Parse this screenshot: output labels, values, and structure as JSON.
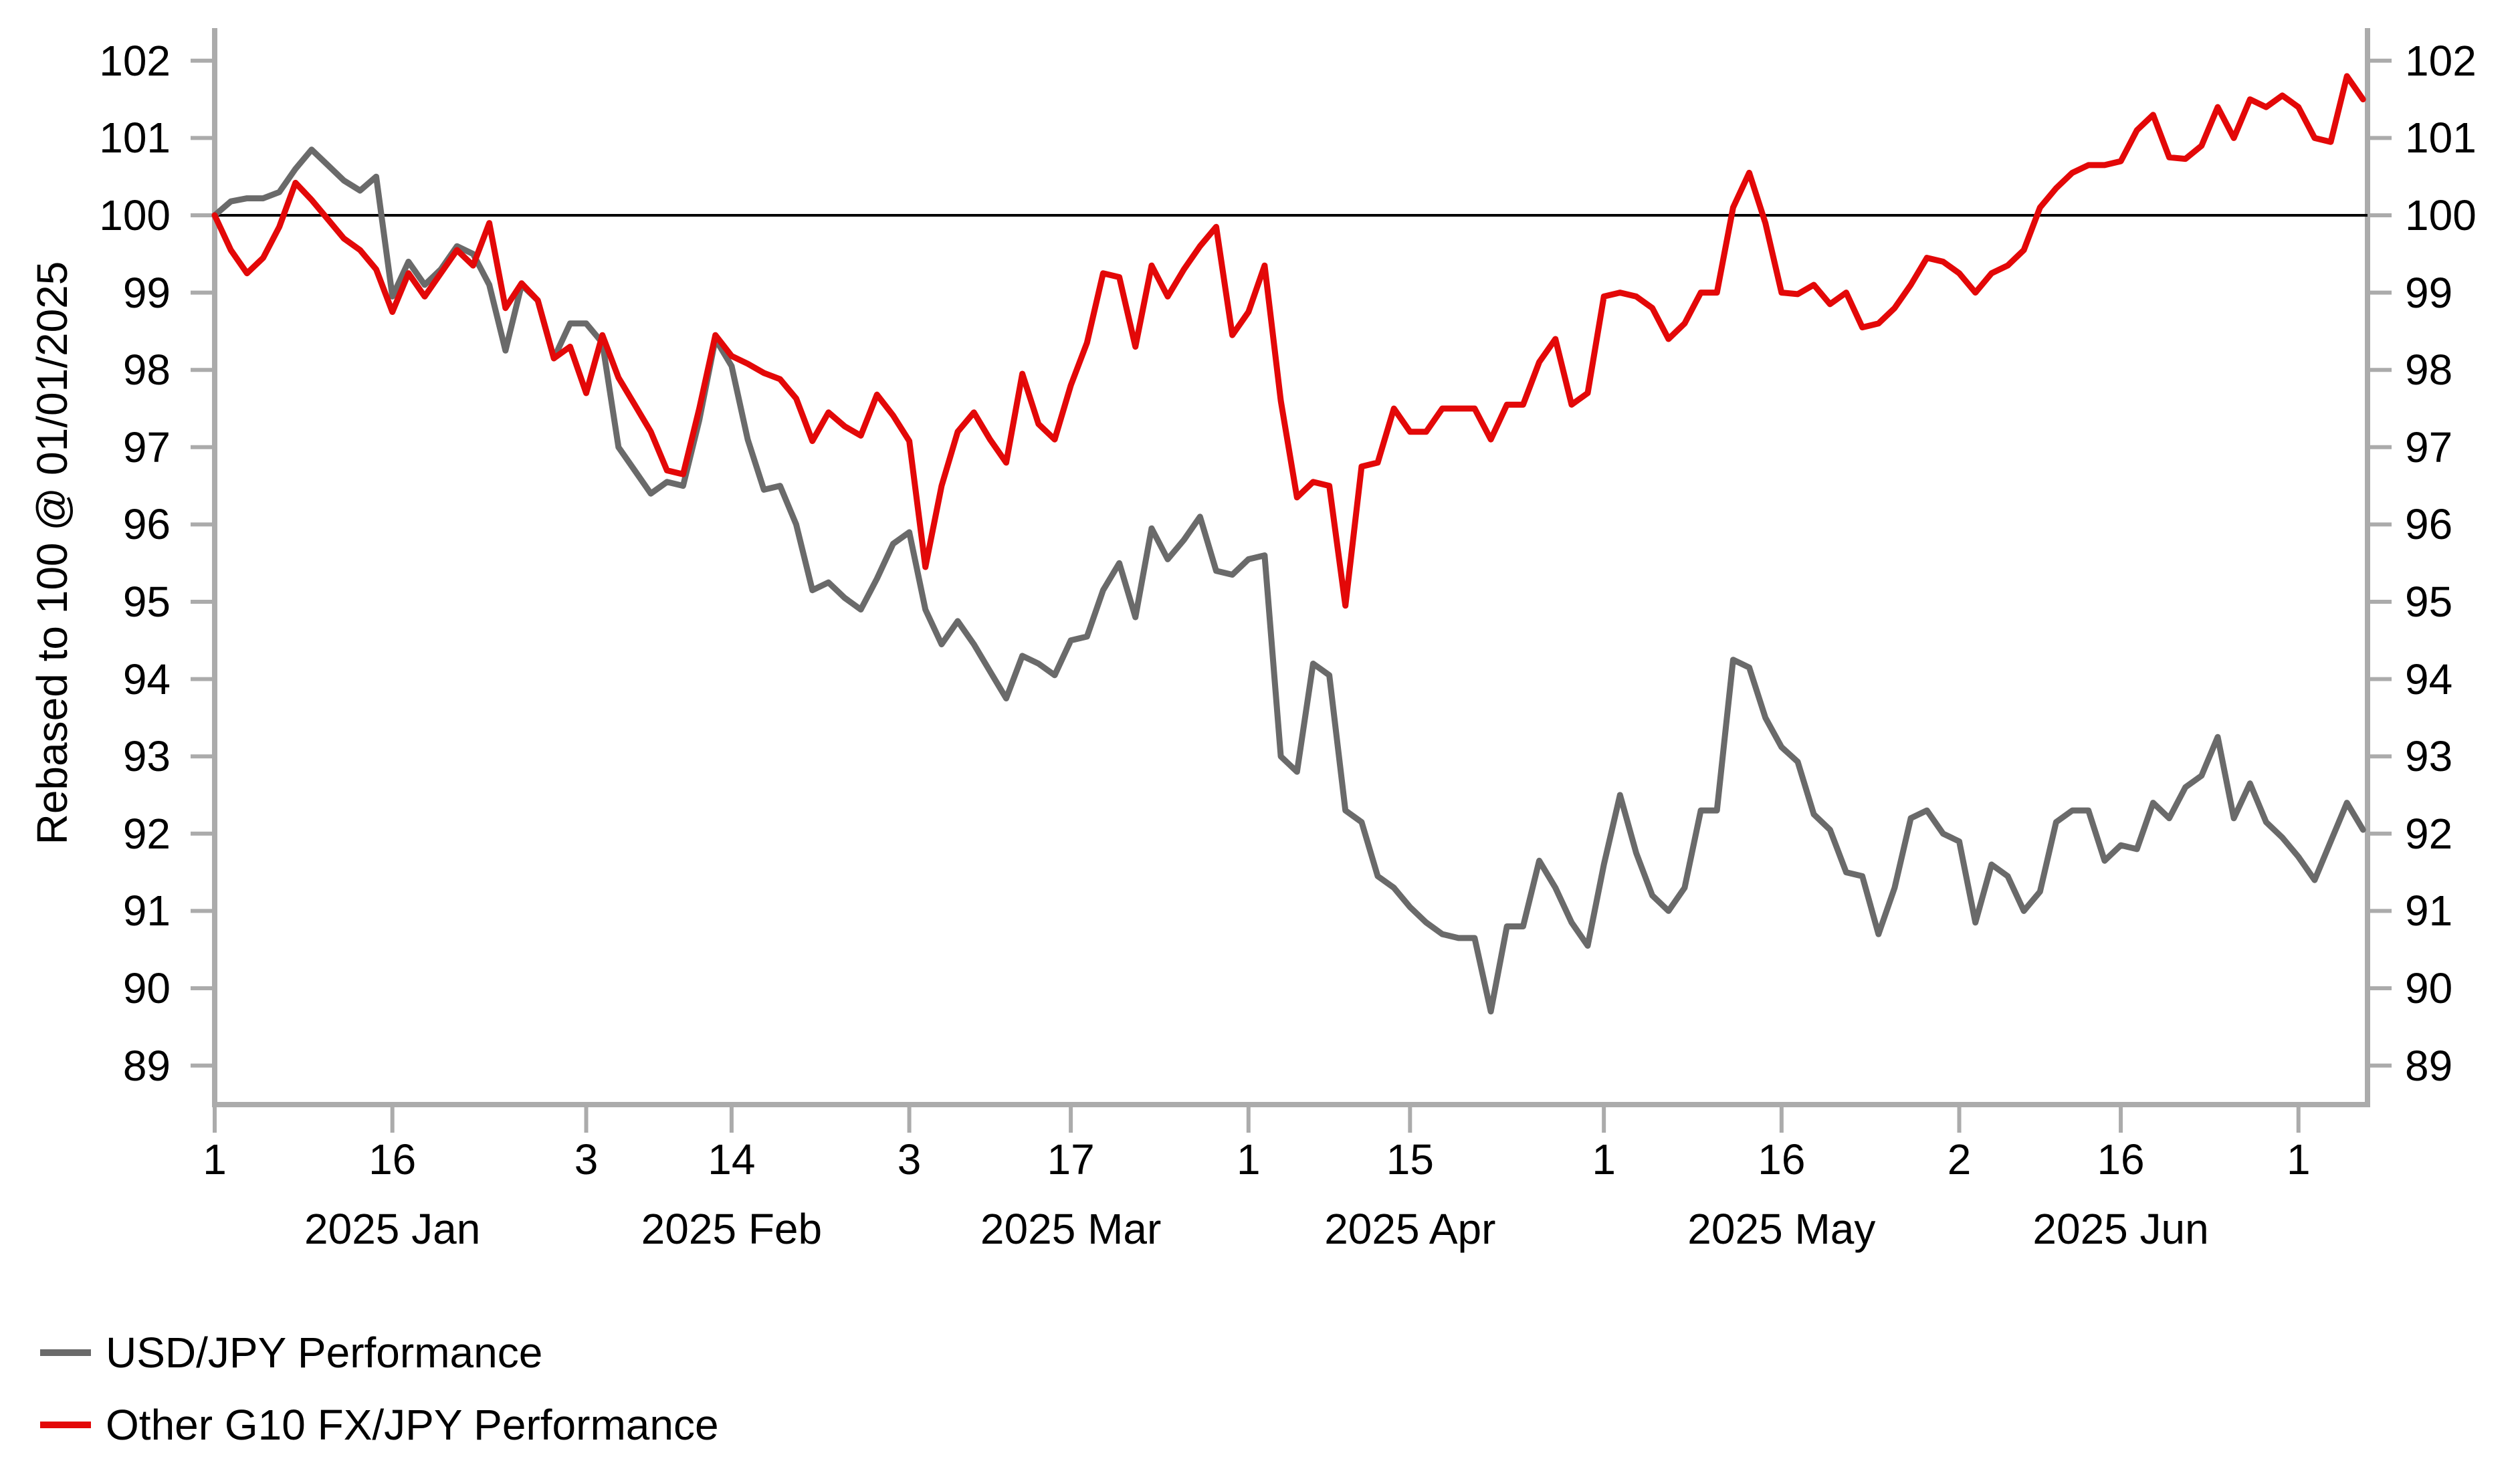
{
  "chart_data": {
    "type": "line",
    "title": "",
    "ylabel": "Rebased to 100 @ 01/01/2025",
    "ylim": [
      89,
      102
    ],
    "yticks": [
      102,
      101,
      100,
      99,
      98,
      97,
      96,
      95,
      94,
      93,
      92,
      91,
      90,
      89
    ],
    "baseline": 100,
    "grid": false,
    "legend_position": "bottom-left",
    "x_dates": [
      "2025-01-01",
      "2025-01-02",
      "2025-01-03",
      "2025-01-06",
      "2025-01-07",
      "2025-01-08",
      "2025-01-09",
      "2025-01-10",
      "2025-01-13",
      "2025-01-14",
      "2025-01-15",
      "2025-01-16",
      "2025-01-17",
      "2025-01-20",
      "2025-01-21",
      "2025-01-22",
      "2025-01-23",
      "2025-01-24",
      "2025-01-27",
      "2025-01-28",
      "2025-01-29",
      "2025-01-30",
      "2025-01-31",
      "2025-02-03",
      "2025-02-04",
      "2025-02-05",
      "2025-02-06",
      "2025-02-07",
      "2025-02-10",
      "2025-02-11",
      "2025-02-12",
      "2025-02-13",
      "2025-02-14",
      "2025-02-17",
      "2025-02-18",
      "2025-02-19",
      "2025-02-20",
      "2025-02-21",
      "2025-02-24",
      "2025-02-25",
      "2025-02-26",
      "2025-02-27",
      "2025-02-28",
      "2025-03-03",
      "2025-03-04",
      "2025-03-05",
      "2025-03-06",
      "2025-03-07",
      "2025-03-10",
      "2025-03-11",
      "2025-03-12",
      "2025-03-13",
      "2025-03-14",
      "2025-03-17",
      "2025-03-18",
      "2025-03-19",
      "2025-03-20",
      "2025-03-21",
      "2025-03-24",
      "2025-03-25",
      "2025-03-26",
      "2025-03-27",
      "2025-03-28",
      "2025-03-31",
      "2025-04-01",
      "2025-04-02",
      "2025-04-03",
      "2025-04-04",
      "2025-04-07",
      "2025-04-08",
      "2025-04-09",
      "2025-04-10",
      "2025-04-11",
      "2025-04-14",
      "2025-04-15",
      "2025-04-16",
      "2025-04-17",
      "2025-04-18",
      "2025-04-21",
      "2025-04-22",
      "2025-04-23",
      "2025-04-24",
      "2025-04-25",
      "2025-04-28",
      "2025-04-29",
      "2025-04-30",
      "2025-05-01",
      "2025-05-02",
      "2025-05-05",
      "2025-05-06",
      "2025-05-07",
      "2025-05-08",
      "2025-05-09",
      "2025-05-12",
      "2025-05-13",
      "2025-05-14",
      "2025-05-15",
      "2025-05-16",
      "2025-05-19",
      "2025-05-20",
      "2025-05-21",
      "2025-05-22",
      "2025-05-23",
      "2025-05-26",
      "2025-05-27",
      "2025-05-28",
      "2025-05-29",
      "2025-05-30",
      "2025-06-02",
      "2025-06-03",
      "2025-06-04",
      "2025-06-05",
      "2025-06-06",
      "2025-06-09",
      "2025-06-10",
      "2025-06-11",
      "2025-06-12",
      "2025-06-13",
      "2025-06-16",
      "2025-06-17",
      "2025-06-18",
      "2025-06-19",
      "2025-06-20",
      "2025-06-23",
      "2025-06-24",
      "2025-06-25",
      "2025-06-26",
      "2025-06-27",
      "2025-06-30",
      "2025-07-01",
      "2025-07-02",
      "2025-07-03",
      "2025-07-04",
      "2025-07-07"
    ],
    "xticks": [
      {
        "i": 0,
        "label": "1"
      },
      {
        "i": 11,
        "label": "16"
      },
      {
        "i": 23,
        "label": "3"
      },
      {
        "i": 32,
        "label": "14"
      },
      {
        "i": 43,
        "label": "3"
      },
      {
        "i": 53,
        "label": "17"
      },
      {
        "i": 64,
        "label": "1"
      },
      {
        "i": 74,
        "label": "15"
      },
      {
        "i": 86,
        "label": "1"
      },
      {
        "i": 97,
        "label": "16"
      },
      {
        "i": 108,
        "label": "2"
      },
      {
        "i": 118,
        "label": "16"
      },
      {
        "i": 129,
        "label": "1"
      }
    ],
    "month_labels": [
      {
        "i": 11,
        "label": "2025 Jan"
      },
      {
        "i": 32,
        "label": "2025 Feb"
      },
      {
        "i": 53,
        "label": "2025 Mar"
      },
      {
        "i": 74,
        "label": "2025 Apr"
      },
      {
        "i": 97,
        "label": "2025 May"
      },
      {
        "i": 118,
        "label": "2025 Jun"
      }
    ],
    "series": [
      {
        "name": "USD/JPY Performance",
        "color": "#6a6a6a",
        "values": [
          100.0,
          100.18,
          100.22,
          100.22,
          100.3,
          100.6,
          100.85,
          100.65,
          100.45,
          100.32,
          100.5,
          98.95,
          99.4,
          99.1,
          99.3,
          99.6,
          99.5,
          99.1,
          98.25,
          99.1,
          98.9,
          98.15,
          98.6,
          98.6,
          98.35,
          97.0,
          96.7,
          96.4,
          96.55,
          96.5,
          97.35,
          98.4,
          98.05,
          97.1,
          96.45,
          96.5,
          96.0,
          95.15,
          95.25,
          95.05,
          94.9,
          95.3,
          95.75,
          95.9,
          94.9,
          94.45,
          94.75,
          94.45,
          94.1,
          93.75,
          94.3,
          94.2,
          94.05,
          94.5,
          94.55,
          95.15,
          95.5,
          94.8,
          95.95,
          95.55,
          95.8,
          96.1,
          95.4,
          95.35,
          95.55,
          95.6,
          93.0,
          92.8,
          94.2,
          94.05,
          92.3,
          92.15,
          91.45,
          91.3,
          91.05,
          90.85,
          90.7,
          90.65,
          90.65,
          89.7,
          90.8,
          90.8,
          91.65,
          91.3,
          90.85,
          90.55,
          91.6,
          92.5,
          91.75,
          91.2,
          91.0,
          91.3,
          92.3,
          92.3,
          94.25,
          94.15,
          93.5,
          93.12,
          92.93,
          92.25,
          92.05,
          91.5,
          91.45,
          90.7,
          91.3,
          92.2,
          92.3,
          92.0,
          91.9,
          90.85,
          91.6,
          91.45,
          91.0,
          91.25,
          92.15,
          92.3,
          92.3,
          91.65,
          91.85,
          91.8,
          92.4,
          92.2,
          92.6,
          92.75,
          93.25,
          92.2,
          92.65,
          92.15,
          91.95,
          91.7,
          91.4,
          91.9,
          92.4,
          92.05
        ]
      },
      {
        "name": "Other G10 FX/JPY Performance",
        "color": "#e30808",
        "values": [
          100.0,
          99.55,
          99.25,
          99.45,
          99.85,
          100.42,
          100.2,
          99.95,
          99.7,
          99.55,
          99.3,
          98.75,
          99.25,
          98.95,
          99.25,
          99.55,
          99.35,
          99.9,
          98.8,
          99.12,
          98.9,
          98.15,
          98.3,
          97.7,
          98.45,
          97.9,
          97.55,
          97.2,
          96.7,
          96.65,
          97.5,
          98.45,
          98.18,
          98.08,
          97.96,
          97.88,
          97.63,
          97.08,
          97.45,
          97.27,
          97.15,
          97.68,
          97.41,
          97.08,
          95.45,
          96.5,
          97.2,
          97.45,
          97.1,
          96.8,
          97.95,
          97.3,
          97.1,
          97.8,
          98.35,
          99.25,
          99.2,
          98.3,
          99.35,
          98.95,
          99.3,
          99.6,
          99.85,
          98.45,
          98.75,
          99.35,
          97.6,
          96.35,
          96.55,
          96.5,
          94.95,
          96.75,
          96.8,
          97.5,
          97.2,
          97.2,
          97.5,
          97.5,
          97.5,
          97.1,
          97.55,
          97.55,
          98.1,
          98.4,
          97.55,
          97.7,
          98.95,
          99.0,
          98.95,
          98.8,
          98.4,
          98.6,
          99.0,
          99.0,
          100.1,
          100.55,
          99.9,
          99.0,
          98.98,
          99.1,
          98.85,
          99.0,
          98.55,
          98.6,
          98.8,
          99.1,
          99.45,
          99.4,
          99.25,
          99.0,
          99.25,
          99.35,
          99.55,
          100.1,
          100.35,
          100.55,
          100.65,
          100.65,
          100.7,
          101.1,
          101.3,
          100.75,
          100.73,
          100.9,
          101.4,
          101.0,
          101.5,
          101.4,
          101.55,
          101.4,
          101.0,
          100.95,
          101.8,
          101.5
        ]
      }
    ],
    "axis_color": "#ababab",
    "baseline_color": "#000000"
  }
}
